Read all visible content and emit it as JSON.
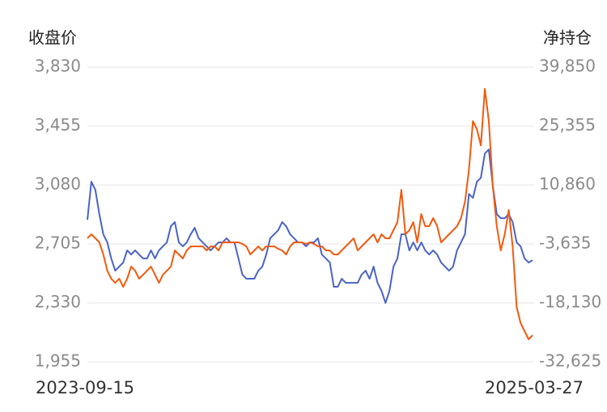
{
  "chart_data": {
    "type": "line",
    "y_label": "收盘价",
    "y2_label": "净持仓",
    "categories": [
      "2023-09-15",
      null,
      null,
      null,
      null,
      null,
      null,
      null,
      null,
      null,
      null,
      null,
      null,
      null,
      null,
      null,
      null,
      null,
      null,
      null,
      null,
      null,
      null,
      null,
      null,
      null,
      null,
      null,
      null,
      null,
      null,
      null,
      null,
      null,
      null,
      null,
      null,
      null,
      null,
      null,
      null,
      null,
      null,
      null,
      null,
      null,
      null,
      null,
      null,
      null,
      null,
      null,
      null,
      null,
      null,
      null,
      null,
      null,
      null,
      null,
      null,
      null,
      null,
      null,
      null,
      null,
      null,
      null,
      null,
      null,
      null,
      null,
      null,
      null,
      null,
      null,
      null,
      null,
      null,
      null,
      null,
      null,
      null,
      null,
      null,
      null,
      null,
      null,
      null,
      null,
      null,
      null,
      null,
      null,
      null,
      null,
      null,
      null,
      null,
      null,
      null,
      null,
      null,
      null,
      null,
      null,
      null,
      null,
      null,
      null,
      null,
      null,
      "2025-03-27"
    ],
    "series": [
      {
        "color": "#4a63c8",
        "axis": "y",
        "values": [
          2859,
          3101,
          3049,
          2895,
          2767,
          2715,
          2613,
          2535,
          2561,
          2587,
          2664,
          2638,
          2664,
          2638,
          2613,
          2613,
          2664,
          2613,
          2664,
          2690,
          2715,
          2818,
          2844,
          2715,
          2690,
          2715,
          2767,
          2808,
          2741,
          2715,
          2690,
          2664,
          2690,
          2715,
          2715,
          2741,
          2715,
          2715,
          2613,
          2510,
          2484,
          2484,
          2484,
          2535,
          2561,
          2638,
          2741,
          2767,
          2792,
          2844,
          2818,
          2767,
          2741,
          2715,
          2715,
          2690,
          2715,
          2715,
          2741,
          2638,
          2613,
          2587,
          2433,
          2433,
          2484,
          2458,
          2458,
          2458,
          2458,
          2510,
          2535,
          2484,
          2561,
          2458,
          2407,
          2330,
          2407,
          2561,
          2613,
          2767,
          2767,
          2664,
          2715,
          2664,
          2715,
          2664,
          2638,
          2664,
          2638,
          2587,
          2561,
          2535,
          2561,
          2664,
          2715,
          2767,
          3023,
          2998,
          3101,
          3126,
          3280,
          3306,
          3075,
          2895,
          2869,
          2869,
          2895,
          2844,
          2715,
          2690,
          2613,
          2587,
          2602
        ]
      },
      {
        "color": "#f25a0d",
        "axis": "y2",
        "values": [
          -2246,
          -1253,
          -2246,
          -3239,
          -6216,
          -10193,
          -12180,
          -13174,
          -12180,
          -14165,
          -12180,
          -9202,
          -10193,
          -12180,
          -11187,
          -10193,
          -9202,
          -11187,
          -13174,
          -11187,
          -10193,
          -9202,
          -5223,
          -6216,
          -7208,
          -5223,
          -4232,
          -4232,
          -4232,
          -4232,
          -5223,
          -4232,
          -4232,
          -5223,
          -3239,
          -3239,
          -3239,
          -3239,
          -3239,
          -3636,
          -4232,
          -6216,
          -5223,
          -4232,
          -5223,
          -4232,
          -4232,
          -4232,
          -4826,
          -5223,
          -6216,
          -4232,
          -3239,
          -3239,
          -3239,
          -3636,
          -3239,
          -3636,
          -4232,
          -4232,
          -5223,
          -5223,
          -6216,
          -6216,
          -5223,
          -4232,
          -3239,
          -2246,
          -5223,
          -4232,
          -3239,
          -2246,
          -1253,
          -3239,
          -1253,
          -2246,
          -2246,
          -260,
          1726,
          9657,
          -1253,
          -260,
          1726,
          -3239,
          3712,
          734,
          734,
          2719,
          734,
          -3239,
          -2246,
          -1253,
          -260,
          734,
          2719,
          6691,
          14633,
          26546,
          24561,
          20590,
          34489,
          26546,
          10662,
          734,
          -5223,
          -1253,
          4706,
          -4232,
          -19121,
          -23094,
          -25079,
          -27065,
          -26071
        ]
      }
    ],
    "ylim": [
      1955,
      3830
    ],
    "yticks": [
      {
        "value": 1955,
        "label": "1,955"
      },
      {
        "value": 2330,
        "label": "2,330"
      },
      {
        "value": 2705,
        "label": "2,705"
      },
      {
        "value": 3080,
        "label": "3,080"
      },
      {
        "value": 3455,
        "label": "3,455"
      },
      {
        "value": 3830,
        "label": "3,830"
      }
    ],
    "y2lim": [
      -32625,
      39850
    ],
    "y2ticks": [
      {
        "value": -32625,
        "label": "-32,625"
      },
      {
        "value": -18130,
        "label": "-18,130"
      },
      {
        "value": -3635,
        "label": "-3,635"
      },
      {
        "value": 10860,
        "label": "10,860"
      },
      {
        "value": 25355,
        "label": "25,355"
      },
      {
        "value": 39850,
        "label": "39,850"
      }
    ],
    "grid": true
  }
}
